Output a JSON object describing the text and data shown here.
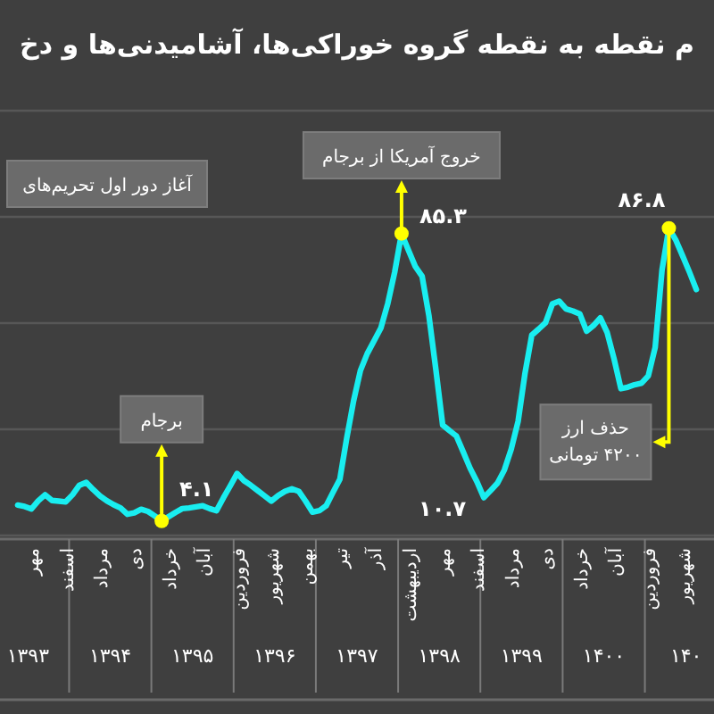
{
  "chart_data": {
    "type": "line",
    "title": "م نقطه به نقطه گروه خوراکی‌ها، آشامیدنی‌ها و دخ",
    "categories": [
      null,
      null,
      "مهر",
      null,
      null,
      null,
      null,
      "اسفند",
      null,
      null,
      null,
      null,
      "مرداد",
      null,
      null,
      null,
      null,
      "دی",
      null,
      null,
      null,
      null,
      "خرداد",
      null,
      null,
      null,
      null,
      "آبان",
      null,
      null,
      null,
      null,
      "فروردین",
      null,
      null,
      null,
      null,
      "شهریور",
      null,
      null,
      null,
      null,
      "بهمن",
      null,
      null,
      null,
      null,
      "تیر",
      null,
      null,
      null,
      null,
      "آذر",
      null,
      null,
      null,
      null,
      "اردیبهشت",
      null,
      null,
      null,
      null,
      "مهر",
      null,
      null,
      null,
      null,
      "اسفند",
      null,
      null,
      null,
      null,
      "مرداد",
      null,
      null,
      null,
      null,
      "دی",
      null,
      null,
      null,
      null,
      "خرداد",
      null,
      null,
      null,
      null,
      "آبان",
      null,
      null,
      null,
      null,
      "فروردین",
      null,
      null,
      null,
      null,
      "شهریور",
      null,
      null
    ],
    "series": [
      {
        "color": "#19eef0",
        "values": [
          8.6,
          8.2,
          7.5,
          9.8,
          11.5,
          9.9,
          9.7,
          9.5,
          11.5,
          14.2,
          15.0,
          13.0,
          11.2,
          9.8,
          8.7,
          7.8,
          6.0,
          6.4,
          7.4,
          6.8,
          5.5,
          4.1,
          5.3,
          6.5,
          7.6,
          7.8,
          8.1,
          8.4,
          7.6,
          7.0,
          10.6,
          14.0,
          17.5,
          15.5,
          14.2,
          12.7,
          11.2,
          9.7,
          11.3,
          12.5,
          13.2,
          12.5,
          9.7,
          6.6,
          7.0,
          8.4,
          12.2,
          15.9,
          27.5,
          38.0,
          46.6,
          51.4,
          55.0,
          58.7,
          65.6,
          74.4,
          85.3,
          80.6,
          76.0,
          73.2,
          62.0,
          47.0,
          31.2,
          29.6,
          28.1,
          23.6,
          19.0,
          15.2,
          10.7,
          12.7,
          14.8,
          18.5,
          24.4,
          32.2,
          45.7,
          56.6,
          58.3,
          60.1,
          65.4,
          66.2,
          64.0,
          63.4,
          62.6,
          57.7,
          59.3,
          61.5,
          57.3,
          49.9,
          41.5,
          41.9,
          42.6,
          43.0,
          45.1,
          53.1,
          75.0,
          86.8,
          83.5,
          79.0,
          74.4,
          69.5
        ],
        "value_labels": [
          null,
          null,
          null,
          null,
          null,
          null,
          null,
          null,
          null,
          null,
          null,
          null,
          null,
          null,
          null,
          null,
          null,
          null,
          null,
          null,
          null,
          "۴.۱",
          null,
          null,
          null,
          null,
          null,
          null,
          null,
          null,
          null,
          null,
          null,
          null,
          null,
          null,
          null,
          null,
          null,
          null,
          null,
          null,
          null,
          null,
          null,
          null,
          null,
          null,
          null,
          null,
          null,
          null,
          null,
          null,
          null,
          null,
          "۸۵.۳",
          null,
          null,
          null,
          null,
          null,
          null,
          null,
          null,
          null,
          null,
          null,
          "۱۰.۷",
          null,
          null,
          null,
          null,
          null,
          null,
          null,
          null,
          null,
          null,
          null,
          null,
          null,
          null,
          null,
          null,
          null,
          null,
          null,
          null,
          null,
          null,
          null,
          null,
          null,
          null,
          "۸۶.۸",
          null,
          null,
          null,
          null
        ]
      }
    ],
    "ylim": [
      0,
      120
    ],
    "yticks": [
      {
        "value": 0,
        "label": null
      },
      {
        "value": 30,
        "label": null
      },
      {
        "value": 60,
        "label": null
      },
      {
        "value": 90,
        "label": null
      },
      {
        "value": 120,
        "label": null
      }
    ],
    "grid": "y",
    "tick_labels": "x",
    "marker": "none",
    "line_style": "solid",
    "annotations": [
      "آغاز دور اول تحریم‌های",
      "۱۳۹۳",
      "۱۳۹۴",
      "۱۳۹۵",
      "۱۳۹۶",
      "۱۳۹۷",
      "۱۳۹۸",
      "۱۳۹۹",
      "۱۴۰۰",
      "۱۴۰",
      {
        "text": "برجام",
        "y": 4.1
      },
      {
        "text": "خروج آمریکا از برجام",
        "y": 85.3
      },
      "حذف ارز ۴۲۰۰ تومانی"
    ]
  }
}
